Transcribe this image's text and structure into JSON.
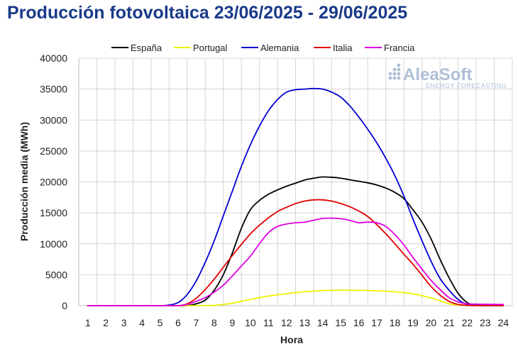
{
  "chart_data": {
    "type": "line",
    "title": "Producción fotovoltaica 23/06/2025 - 29/06/2025",
    "xlabel": "Hora",
    "ylabel": "Producción media (MWh)",
    "ylim": [
      0,
      40000
    ],
    "yticks": [
      0,
      5000,
      10000,
      15000,
      20000,
      25000,
      30000,
      35000,
      40000
    ],
    "categories": [
      "1",
      "2",
      "3",
      "4",
      "5",
      "6",
      "7",
      "8",
      "9",
      "10",
      "11",
      "12",
      "13",
      "14",
      "15",
      "16",
      "17",
      "18",
      "19",
      "20",
      "21",
      "22",
      "23",
      "24"
    ],
    "legend_position": "top",
    "grid": true,
    "series": [
      {
        "name": "España",
        "color": "#000000",
        "x": [
          1,
          2,
          3,
          4,
          5,
          6,
          6.5,
          7,
          7.5,
          8,
          8.5,
          9,
          9.5,
          10,
          10.5,
          11,
          11.5,
          12,
          12.5,
          13,
          13.5,
          14,
          14.5,
          15,
          15.5,
          16,
          16.5,
          17,
          17.5,
          18,
          18.5,
          19,
          19.5,
          20,
          20.5,
          21,
          21.5,
          22,
          22.5,
          23,
          24
        ],
        "values": [
          0,
          0,
          0,
          0,
          0,
          0,
          0,
          300,
          900,
          2500,
          5000,
          8500,
          12500,
          15500,
          17000,
          18000,
          18700,
          19300,
          19800,
          20300,
          20600,
          20800,
          20750,
          20600,
          20350,
          20100,
          19850,
          19500,
          19000,
          18300,
          17300,
          15500,
          13500,
          10800,
          7500,
          4500,
          2000,
          500,
          100,
          50,
          50
        ]
      },
      {
        "name": "Portugal",
        "color": "#f0f000",
        "x": [
          1,
          2,
          3,
          4,
          5,
          6,
          7,
          7.5,
          8,
          8.5,
          9,
          9.5,
          10,
          10.5,
          11,
          11.5,
          12,
          12.5,
          13,
          13.5,
          14,
          14.5,
          15,
          15.5,
          16,
          16.5,
          17,
          17.5,
          18,
          18.5,
          19,
          19.5,
          20,
          20.5,
          21,
          21.5,
          22,
          23,
          24
        ],
        "values": [
          0,
          0,
          0,
          0,
          0,
          0,
          0,
          0,
          50,
          200,
          400,
          700,
          1000,
          1300,
          1550,
          1750,
          1950,
          2100,
          2250,
          2350,
          2450,
          2480,
          2500,
          2500,
          2480,
          2450,
          2400,
          2350,
          2250,
          2100,
          1900,
          1600,
          1250,
          800,
          300,
          100,
          50,
          30,
          30
        ]
      },
      {
        "name": "Alemania",
        "color": "#0000d0",
        "x": [
          1,
          2,
          3,
          4,
          5,
          5.5,
          6,
          6.5,
          7,
          7.5,
          8,
          8.5,
          9,
          9.5,
          10,
          10.5,
          11,
          11.5,
          12,
          12.5,
          13,
          13.5,
          14,
          14.5,
          15,
          15.5,
          16,
          16.5,
          17,
          17.5,
          18,
          18.5,
          19,
          19.5,
          20,
          20.5,
          21,
          21.5,
          22,
          22.5,
          23,
          24
        ],
        "values": [
          0,
          0,
          0,
          0,
          0,
          100,
          500,
          1800,
          4000,
          7000,
          10500,
          14500,
          18500,
          22500,
          26000,
          29000,
          31500,
          33300,
          34500,
          34900,
          35000,
          35100,
          35000,
          34500,
          33700,
          32300,
          30500,
          28500,
          26300,
          23800,
          21000,
          17700,
          14000,
          10500,
          7200,
          4400,
          2500,
          1000,
          200,
          50,
          20,
          20
        ]
      },
      {
        "name": "Italia",
        "color": "#e00000",
        "x": [
          1,
          2,
          3,
          4,
          5,
          6,
          6.5,
          7,
          7.5,
          8,
          8.5,
          9,
          9.5,
          10,
          10.5,
          11,
          11.5,
          12,
          12.5,
          13,
          13.5,
          14,
          14.5,
          15,
          15.5,
          16,
          16.5,
          17,
          17.5,
          18,
          18.5,
          19,
          19.5,
          20,
          20.5,
          21,
          21.5,
          22,
          22.5,
          23,
          24
        ],
        "values": [
          0,
          0,
          0,
          0,
          0,
          0,
          300,
          1200,
          2600,
          4300,
          6200,
          8100,
          9900,
          11600,
          13000,
          14200,
          15200,
          15900,
          16500,
          16900,
          17100,
          17100,
          16900,
          16500,
          16000,
          15300,
          14400,
          13100,
          11600,
          10000,
          8300,
          6700,
          4900,
          3100,
          1700,
          700,
          200,
          50,
          20,
          20,
          20
        ]
      },
      {
        "name": "Francia",
        "color": "#e000e0",
        "x": [
          1,
          2,
          3,
          4,
          5,
          6,
          6.5,
          7,
          7.5,
          8,
          8.5,
          9,
          9.5,
          10,
          10.5,
          11,
          11.5,
          12,
          12.5,
          13,
          13.5,
          14,
          14.5,
          15,
          15.5,
          16,
          16.5,
          17,
          17.5,
          18,
          18.5,
          19,
          19.5,
          20,
          20.5,
          21,
          21.5,
          22,
          22.5,
          23,
          24
        ],
        "values": [
          0,
          0,
          0,
          0,
          0,
          0,
          200,
          700,
          1300,
          2200,
          3300,
          4800,
          6400,
          8000,
          10000,
          11800,
          12800,
          13200,
          13400,
          13500,
          13800,
          14100,
          14150,
          14050,
          13800,
          13400,
          13500,
          13400,
          12800,
          11500,
          9800,
          7800,
          5900,
          4100,
          2600,
          1300,
          600,
          300,
          250,
          220,
          200
        ]
      }
    ]
  },
  "logo": {
    "name": "AleaSoft",
    "tagline": "ENERGY FORECASTING"
  }
}
